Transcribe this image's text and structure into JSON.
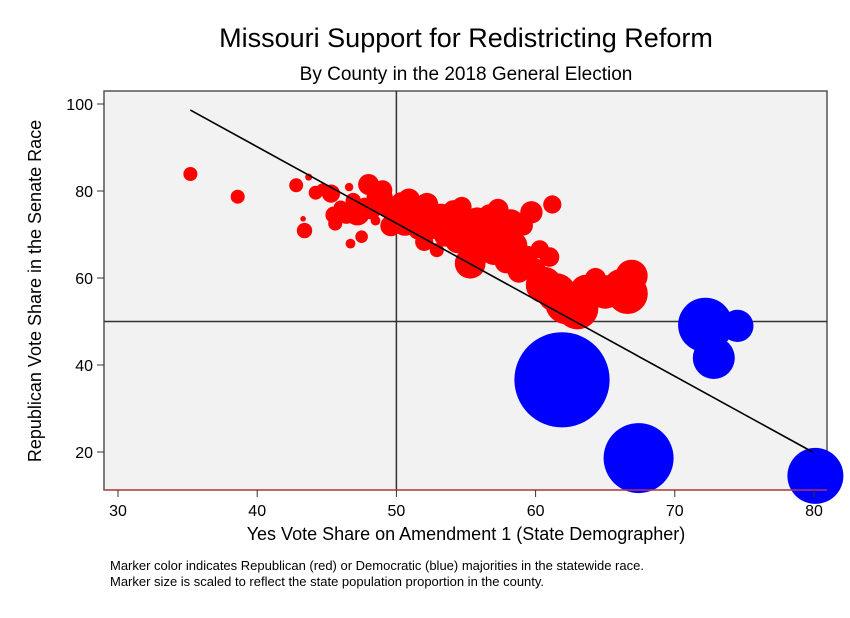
{
  "chart_data": {
    "type": "scatter",
    "title": "Missouri Support for Redistricting Reform",
    "subtitle": "By County in the 2018 General Election",
    "xlabel": "Yes Vote Share on Amendment 1 (State Demographer)",
    "ylabel": "Republican Vote Share in the Senate Race",
    "xlim": [
      29,
      81
    ],
    "ylim": [
      12,
      103
    ],
    "xticks": [
      30,
      40,
      50,
      60,
      70,
      80
    ],
    "yticks": [
      20,
      40,
      60,
      80,
      100
    ],
    "reference_lines": {
      "x": 50,
      "y": 50
    },
    "fit_line": {
      "x": [
        35.2,
        79.9
      ],
      "y": [
        98.6,
        20.0
      ]
    },
    "grid": false,
    "legend": "none",
    "notes": [
      "Marker color indicates Republican (red) or Democratic (blue) majorities in the statewide race.",
      "Marker size is scaled to reflect the state population proportion in the county."
    ],
    "colors": {
      "republican": "#ff0000",
      "democratic": "#0000ff",
      "background": "#f2f2f2",
      "line": "#000000"
    },
    "series": [
      {
        "name": "Republican majority",
        "color": "#ff0000",
        "points": [
          {
            "x": 35.2,
            "y": 83.9,
            "size": 1.0
          },
          {
            "x": 38.6,
            "y": 78.7,
            "size": 1.0
          },
          {
            "x": 42.8,
            "y": 81.3,
            "size": 1.0
          },
          {
            "x": 43.3,
            "y": 73.6,
            "size": 0.4
          },
          {
            "x": 43.4,
            "y": 70.9,
            "size": 1.1
          },
          {
            "x": 43.7,
            "y": 83.2,
            "size": 0.5
          },
          {
            "x": 44.2,
            "y": 79.6,
            "size": 1.0
          },
          {
            "x": 44.7,
            "y": 80.3,
            "size": 0.9
          },
          {
            "x": 45.3,
            "y": 79.4,
            "size": 1.3
          },
          {
            "x": 45.5,
            "y": 74.5,
            "size": 1.2
          },
          {
            "x": 45.6,
            "y": 72.5,
            "size": 1.0
          },
          {
            "x": 46.0,
            "y": 76.2,
            "size": 1.0
          },
          {
            "x": 46.4,
            "y": 74.7,
            "size": 1.4
          },
          {
            "x": 46.6,
            "y": 80.9,
            "size": 0.6
          },
          {
            "x": 46.7,
            "y": 67.9,
            "size": 0.7
          },
          {
            "x": 46.9,
            "y": 77.8,
            "size": 1.1
          },
          {
            "x": 47.2,
            "y": 75.0,
            "size": 1.8
          },
          {
            "x": 47.5,
            "y": 69.5,
            "size": 0.9
          },
          {
            "x": 47.7,
            "y": 77.2,
            "size": 0.8
          },
          {
            "x": 48.0,
            "y": 81.5,
            "size": 1.5
          },
          {
            "x": 48.2,
            "y": 75.7,
            "size": 1.4
          },
          {
            "x": 48.5,
            "y": 73.2,
            "size": 0.7
          },
          {
            "x": 48.8,
            "y": 78.3,
            "size": 1.9
          },
          {
            "x": 49.0,
            "y": 80.2,
            "size": 1.4
          },
          {
            "x": 49.3,
            "y": 76.0,
            "size": 1.3
          },
          {
            "x": 49.6,
            "y": 72.0,
            "size": 1.5
          },
          {
            "x": 50.0,
            "y": 74.8,
            "size": 1.7
          },
          {
            "x": 50.3,
            "y": 77.6,
            "size": 1.3
          },
          {
            "x": 50.6,
            "y": 72.6,
            "size": 1.8
          },
          {
            "x": 50.9,
            "y": 78.0,
            "size": 1.6
          },
          {
            "x": 51.2,
            "y": 75.3,
            "size": 1.4
          },
          {
            "x": 51.5,
            "y": 70.8,
            "size": 1.2
          },
          {
            "x": 51.8,
            "y": 73.8,
            "size": 1.9
          },
          {
            "x": 52.0,
            "y": 68.3,
            "size": 1.3
          },
          {
            "x": 52.2,
            "y": 77.0,
            "size": 1.6
          },
          {
            "x": 52.6,
            "y": 71.7,
            "size": 1.7
          },
          {
            "x": 52.9,
            "y": 66.4,
            "size": 1.0
          },
          {
            "x": 53.2,
            "y": 74.2,
            "size": 1.8
          },
          {
            "x": 53.5,
            "y": 69.8,
            "size": 1.6
          },
          {
            "x": 53.8,
            "y": 72.8,
            "size": 2.0
          },
          {
            "x": 54.1,
            "y": 75.5,
            "size": 1.5
          },
          {
            "x": 54.4,
            "y": 68.6,
            "size": 1.8
          },
          {
            "x": 54.7,
            "y": 76.4,
            "size": 1.4
          },
          {
            "x": 55.0,
            "y": 71.6,
            "size": 2.0
          },
          {
            "x": 55.3,
            "y": 63.4,
            "size": 2.2
          },
          {
            "x": 55.5,
            "y": 67.0,
            "size": 1.6
          },
          {
            "x": 55.8,
            "y": 73.5,
            "size": 1.7
          },
          {
            "x": 56.1,
            "y": 69.4,
            "size": 1.8
          },
          {
            "x": 56.4,
            "y": 71.0,
            "size": 1.5
          },
          {
            "x": 56.7,
            "y": 74.4,
            "size": 1.6
          },
          {
            "x": 57.0,
            "y": 66.2,
            "size": 2.0
          },
          {
            "x": 57.3,
            "y": 75.8,
            "size": 1.5
          },
          {
            "x": 57.6,
            "y": 70.3,
            "size": 1.9
          },
          {
            "x": 57.9,
            "y": 63.8,
            "size": 1.7
          },
          {
            "x": 58.2,
            "y": 72.6,
            "size": 2.0
          },
          {
            "x": 58.5,
            "y": 67.6,
            "size": 1.8
          },
          {
            "x": 58.8,
            "y": 61.5,
            "size": 1.6
          },
          {
            "x": 59.1,
            "y": 72.0,
            "size": 1.4
          },
          {
            "x": 59.4,
            "y": 65.0,
            "size": 1.5
          },
          {
            "x": 59.7,
            "y": 75.1,
            "size": 1.6
          },
          {
            "x": 60.0,
            "y": 62.2,
            "size": 1.4
          },
          {
            "x": 60.3,
            "y": 66.6,
            "size": 1.3
          },
          {
            "x": 60.6,
            "y": 58.4,
            "size": 2.6
          },
          {
            "x": 61.0,
            "y": 64.8,
            "size": 1.4
          },
          {
            "x": 61.2,
            "y": 76.9,
            "size": 1.3
          },
          {
            "x": 61.5,
            "y": 56.6,
            "size": 2.8
          },
          {
            "x": 62.2,
            "y": 54.2,
            "size": 3.0
          },
          {
            "x": 63.0,
            "y": 53.0,
            "size": 3.0
          },
          {
            "x": 63.6,
            "y": 57.2,
            "size": 2.2
          },
          {
            "x": 64.3,
            "y": 59.9,
            "size": 1.5
          },
          {
            "x": 65.0,
            "y": 56.8,
            "size": 2.4
          },
          {
            "x": 66.2,
            "y": 57.8,
            "size": 2.7
          },
          {
            "x": 66.6,
            "y": 56.4,
            "size": 2.9
          },
          {
            "x": 66.9,
            "y": 60.5,
            "size": 2.3
          }
        ]
      },
      {
        "name": "Democratic majority",
        "color": "#0000ff",
        "points": [
          {
            "x": 61.9,
            "y": 36.6,
            "size": 6.8
          },
          {
            "x": 67.4,
            "y": 18.6,
            "size": 5.0
          },
          {
            "x": 80.1,
            "y": 14.5,
            "size": 4.0
          },
          {
            "x": 72.2,
            "y": 49.2,
            "size": 3.9
          },
          {
            "x": 74.5,
            "y": 49.0,
            "size": 2.3
          },
          {
            "x": 72.8,
            "y": 41.6,
            "size": 3.0
          }
        ]
      }
    ]
  }
}
